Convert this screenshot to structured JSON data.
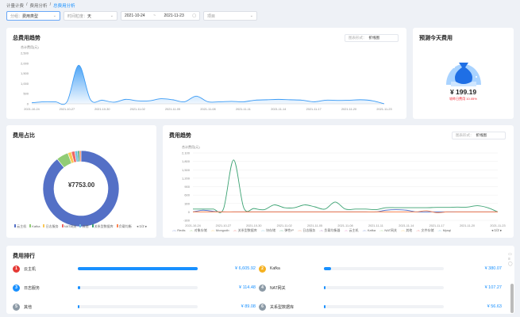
{
  "breadcrumb": [
    "计量计费",
    "费用分析",
    "总费用分析"
  ],
  "filters": {
    "group_label": "分组：",
    "group_value": "费用类型",
    "granularity_label": "时间粒度：",
    "granularity_value": "天",
    "date_start": "2021-10-24",
    "date_sep": "~",
    "date_end": "2021-11-23",
    "project_placeholder": "项目"
  },
  "total_trend": {
    "title": "总费用趋势",
    "chart_form_label": "图表形式：",
    "chart_form_value": "折线图"
  },
  "forecast": {
    "title": "预测今天费用",
    "amount": "¥ 199.19",
    "compare": "较昨日费用 10.05%",
    "colors": {
      "bg": "#a9d3ff",
      "bag": "#1f6fe5",
      "up": "#f5222d"
    }
  },
  "share": {
    "title": "费用占比",
    "total": "¥7753.00",
    "pager": "1/2"
  },
  "type_trend": {
    "title": "费用趋势",
    "chart_form_label": "图表形式：",
    "chart_form_value": "折线图",
    "pager": "1/2"
  },
  "ranking": {
    "title": "费用排行",
    "items": [
      {
        "rank": "1",
        "name": "云主机",
        "amount": "¥ 6,605.92",
        "pct": 100,
        "color": "#e53935"
      },
      {
        "rank": "2",
        "name": "Kafka",
        "amount": "¥ 380.07",
        "pct": 5.8,
        "color": "#f5b121"
      },
      {
        "rank": "3",
        "name": "日志服务",
        "amount": "¥ 114.48",
        "pct": 1.7,
        "color": "#1890ff"
      },
      {
        "rank": "4",
        "name": "NAT网关",
        "amount": "¥ 107.27",
        "pct": 1.6,
        "color": "#8c9aa6"
      },
      {
        "rank": "5",
        "name": "其他",
        "amount": "¥ 89.08",
        "pct": 1.3,
        "color": "#8c9aa6"
      },
      {
        "rank": "6",
        "name": "关系型数据库",
        "amount": "¥ 56.63",
        "pct": 0.9,
        "color": "#8c9aa6"
      }
    ]
  },
  "chart_data": [
    {
      "type": "area",
      "ylabel": "合计费用(元)",
      "ylim": [
        0,
        2500
      ],
      "yticks": [
        0,
        500,
        1000,
        1500,
        2000,
        2500
      ],
      "grid": false,
      "xticks": [
        "2021-10-24",
        "2021-10-27",
        "2021-10-30",
        "2021-11-02",
        "2021-11-05",
        "2021-11-08",
        "2021-11-11",
        "2021-11-14",
        "2021-11-17",
        "2021-11-20",
        "2021-11-23"
      ],
      "values": [
        50,
        100,
        100,
        100,
        1900,
        200,
        180,
        80,
        220,
        150,
        150,
        250,
        200,
        100,
        380,
        100,
        100,
        120,
        100,
        180,
        200,
        220,
        200,
        180,
        100,
        180,
        170,
        180,
        200,
        150,
        0
      ],
      "color": "#3b9bf5"
    },
    {
      "type": "pie",
      "title": "",
      "legend_position": "bottom",
      "slices": [
        {
          "name": "云主机",
          "value": 6605.92,
          "color": "#5470c6"
        },
        {
          "name": "Kafka",
          "value": 380.07,
          "color": "#91cc75"
        },
        {
          "name": "日志服务",
          "value": 114.48,
          "color": "#fac858"
        },
        {
          "name": "NAT网关",
          "value": 107.27,
          "color": "#ee6666"
        },
        {
          "name": "其他",
          "value": 89.08,
          "color": "#73c0de"
        },
        {
          "name": "关系型数据库",
          "value": 56.63,
          "color": "#3ba272"
        },
        {
          "name": "负载均衡",
          "value": 50,
          "color": "#fc8452"
        }
      ]
    },
    {
      "type": "line",
      "ylabel": "合计费用(元)",
      "ylim": [
        -300,
        2100
      ],
      "yticks": [
        -300,
        0,
        300,
        600,
        900,
        1200,
        1500,
        1800,
        2100
      ],
      "grid": true,
      "xticks": [
        "2021-10-24",
        "2021-10-27",
        "2021-10-30",
        "2021-11-02",
        "2021-11-05",
        "2021-11-08",
        "2021-11-11",
        "2021-11-14",
        "2021-11-17",
        "2021-11-20",
        "2021-11-23"
      ],
      "legend": [
        {
          "name": "Redis",
          "color": "#5470c6"
        },
        {
          "name": "对象存储",
          "color": "#91cc75"
        },
        {
          "name": "Mongodb",
          "color": "#fac858"
        },
        {
          "name": "关系型数据库",
          "color": "#ee6666"
        },
        {
          "name": "块存储",
          "color": "#73c0de"
        },
        {
          "name": "弹性IP",
          "color": "#3ba272"
        },
        {
          "name": "日志服务",
          "color": "#fc8452"
        },
        {
          "name": "负载均衡器",
          "color": "#9a60b4"
        },
        {
          "name": "云主机",
          "color": "#ea7ccc"
        },
        {
          "name": "Kafka",
          "color": "#5470c6"
        },
        {
          "name": "NAT网关",
          "color": "#91cc75"
        },
        {
          "name": "其他",
          "color": "#fac858"
        },
        {
          "name": "文件存储",
          "color": "#ee6666"
        },
        {
          "name": "Mysql",
          "color": "#73c0de"
        }
      ],
      "series": [
        {
          "name": "弹性IP",
          "color": "#3ba272",
          "values": [
            100,
            100,
            100,
            100,
            1850,
            150,
            120,
            80,
            250,
            150,
            150,
            250,
            180,
            100,
            350,
            100,
            100,
            100,
            80,
            150,
            150,
            150,
            150,
            150,
            160,
            160,
            170,
            170,
            220,
            150,
            0
          ]
        },
        {
          "name": "Redis",
          "color": "#5470c6",
          "values": [
            0,
            60,
            20,
            0,
            0,
            0,
            0,
            0,
            0,
            0,
            0,
            0,
            0,
            0,
            0,
            0,
            0,
            0,
            0,
            60,
            80,
            60,
            0,
            0,
            0,
            0,
            0,
            0,
            0,
            0,
            0
          ]
        },
        {
          "name": "日志服务",
          "color": "#fc8452",
          "values": [
            0,
            0,
            0,
            0,
            0,
            0,
            0,
            0,
            0,
            0,
            0,
            0,
            0,
            0,
            0,
            0,
            0,
            0,
            0,
            0,
            0,
            0,
            0,
            40,
            -30,
            0,
            0,
            0,
            0,
            0,
            0
          ]
        }
      ]
    }
  ]
}
